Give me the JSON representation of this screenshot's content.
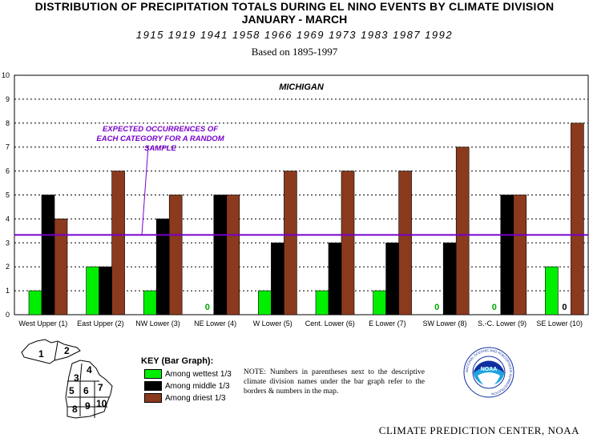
{
  "titles": {
    "line1": "DISTRIBUTION OF PRECIPITATION TOTALS DURING EL NINO EVENTS BY CLIMATE DIVISION",
    "line2": "JANUARY - MARCH",
    "line3": "1915 1919 1941 1958 1966 1969 1973 1983 1987 1992",
    "line4": "Based on 1895-1997"
  },
  "chart_data": {
    "type": "bar",
    "title": "MICHIGAN",
    "categories": [
      "West Upper (1)",
      "East Upper (2)",
      "NW Lower (3)",
      "NE Lower (4)",
      "W Lower (5)",
      "Cent. Lower (6)",
      "E Lower (7)",
      "SW Lower (8)",
      "S.-C. Lower (9)",
      "SE Lower (10)"
    ],
    "series": [
      {
        "name": "Among wettest 1/3",
        "color": "#00ee00",
        "values": [
          1,
          2,
          1,
          0,
          1,
          1,
          1,
          0,
          0,
          2
        ]
      },
      {
        "name": "Among middle 1/3",
        "color": "#000000",
        "values": [
          5,
          2,
          4,
          5,
          3,
          3,
          3,
          3,
          5,
          0
        ]
      },
      {
        "name": "Among driest 1/3",
        "color": "#8b3a1e",
        "values": [
          4,
          6,
          5,
          5,
          6,
          6,
          6,
          7,
          5,
          8
        ]
      }
    ],
    "ylim": [
      0,
      10
    ],
    "yticks": [
      "0",
      "1",
      "2",
      "3",
      "4",
      "5",
      "6",
      "7",
      "8",
      "9",
      "10"
    ],
    "expected_line": {
      "value": 3.33,
      "color": "#7700cc",
      "label_lines": [
        "EXPECTED OCCURRENCES OF",
        "EACH CATEGORY FOR A RANDOM",
        "SAMPLE"
      ]
    },
    "zero_label": "0",
    "grid": true
  },
  "key": {
    "title": "KEY (Bar Graph):",
    "items": [
      {
        "label": "Among wettest 1/3",
        "color": "#00ee00"
      },
      {
        "label": "Among middle 1/3",
        "color": "#000000"
      },
      {
        "label": "Among driest 1/3",
        "color": "#8b3a1e"
      }
    ]
  },
  "note": "NOTE:  Numbers in parentheses next to the descriptive climate division names under the bar graph refer to the borders & numbers in the map.",
  "map": {
    "divisions": [
      "1",
      "2",
      "3",
      "4",
      "5",
      "6",
      "7",
      "8",
      "9",
      "10"
    ]
  },
  "logo": {
    "text": "NOAA",
    "ring_text": "NATIONAL OCEANIC AND ATMOSPHERIC ADMINISTRATION"
  },
  "footer": "CLIMATE PREDICTION CENTER, NOAA"
}
